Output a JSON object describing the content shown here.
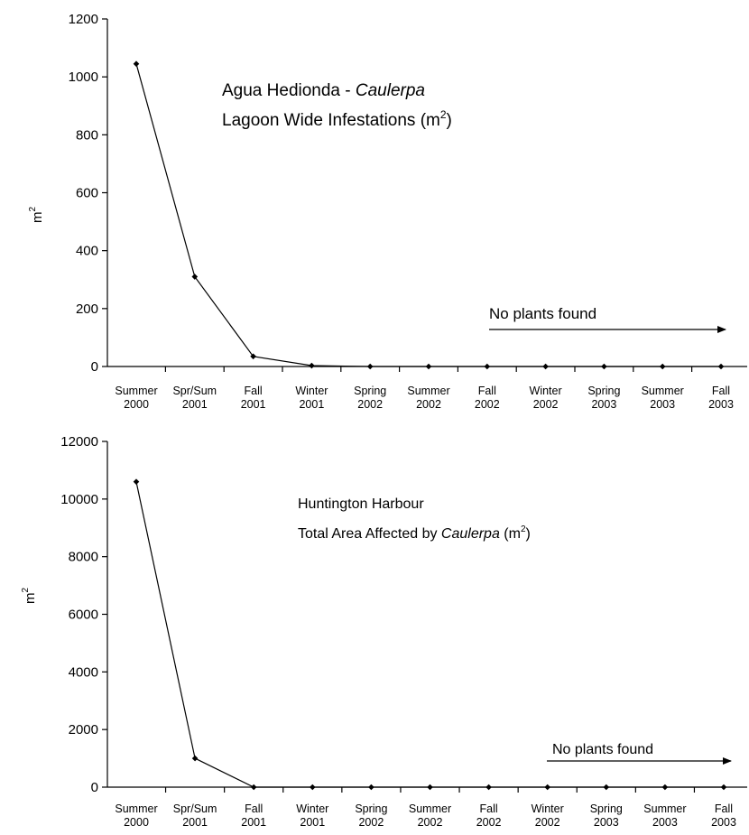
{
  "chart_data": [
    {
      "type": "line",
      "title": "",
      "xlabel": "",
      "ylabel": "m2",
      "ylim": [
        0,
        1200
      ],
      "yticks": [
        "0",
        "200",
        "400",
        "600",
        "800",
        "1000",
        "1200"
      ],
      "categories": [
        [
          "Summer",
          "2000"
        ],
        [
          "Spr/Sum",
          "2001"
        ],
        [
          "Fall",
          "2001"
        ],
        [
          "Winter",
          "2001"
        ],
        [
          "Spring",
          "2002"
        ],
        [
          "Summer",
          "2002"
        ],
        [
          "Fall",
          "2002"
        ],
        [
          "Winter",
          "2002"
        ],
        [
          "Spring",
          "2003"
        ],
        [
          "Summer",
          "2003"
        ],
        [
          "Fall",
          "2003"
        ]
      ],
      "series": [
        {
          "values": [
            1045,
            310,
            35,
            3,
            0,
            0,
            0,
            0,
            0,
            0,
            0
          ]
        }
      ],
      "annotation": {
        "line1": "Agua Hedionda - ",
        "line1_italic": "Caulerpa",
        "line2": "Lagoon Wide  Infestations (m",
        "line2_sup": "2",
        "line2_end": ")"
      },
      "arrow_label": "No plants found",
      "ylabel_main": "m",
      "ylabel_sup": "2",
      "grid": false,
      "legend": "none"
    },
    {
      "type": "line",
      "title": "",
      "xlabel": "",
      "ylabel": "m2",
      "ylim": [
        0,
        12000
      ],
      "yticks": [
        "0",
        "2000",
        "4000",
        "6000",
        "8000",
        "10000",
        "12000"
      ],
      "categories": [
        [
          "Summer",
          "2000"
        ],
        [
          "Spr/Sum",
          "2001"
        ],
        [
          "Fall",
          "2001"
        ],
        [
          "Winter",
          "2001"
        ],
        [
          "Spring",
          "2002"
        ],
        [
          "Summer",
          "2002"
        ],
        [
          "Fall",
          "2002"
        ],
        [
          "Winter",
          "2002"
        ],
        [
          "Spring",
          "2003"
        ],
        [
          "Summer",
          "2003"
        ],
        [
          "Fall",
          "2003"
        ]
      ],
      "series": [
        {
          "values": [
            10600,
            1000,
            0,
            0,
            0,
            0,
            0,
            0,
            0,
            0,
            0
          ]
        }
      ],
      "annotation": {
        "line1": "Huntington Harbour",
        "line2": "Total Area Affected by ",
        "line2_italic": "Caulerpa",
        "line2_mid": "  (m",
        "line2_sup": "2",
        "line2_end": ")"
      },
      "arrow_label": "No plants found",
      "ylabel_main": "m",
      "ylabel_sup": "2",
      "grid": false,
      "legend": "none"
    }
  ]
}
